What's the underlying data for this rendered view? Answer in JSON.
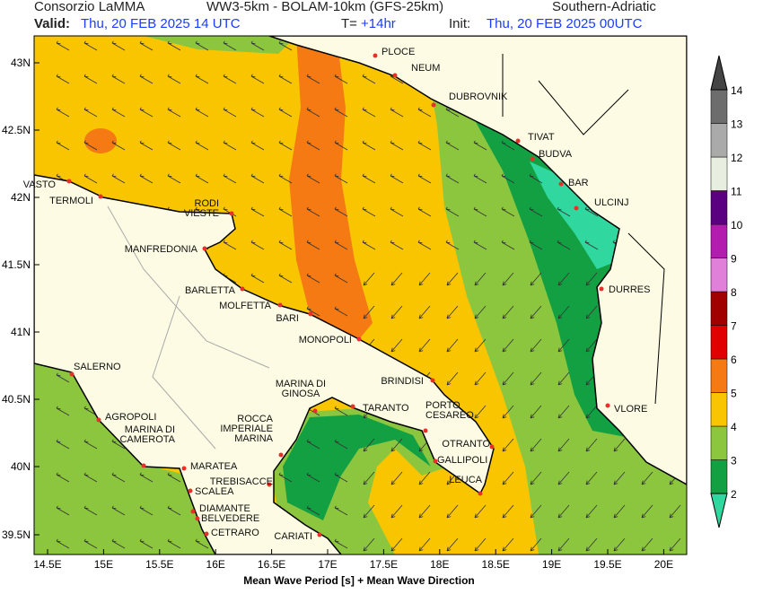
{
  "header": {
    "producer": "Consorzio LaMMA",
    "model": "WW3-5km - BOLAM-10km (GFS-25km)",
    "region": "Southern-Adriatic",
    "valid_label": "Valid:",
    "valid": "Thu, 20 FEB 2025  14 UTC",
    "step_label": "T=",
    "step": "+14hr",
    "init_label": "Init:",
    "init": "Thu, 20 FEB 2025 00UTC"
  },
  "footer": "Mean Wave Period [s] + Mean Wave Direction",
  "lat_labels": [
    "43N",
    "42.5N",
    "42N",
    "41.5N",
    "41N",
    "40.5N",
    "40N",
    "39.5N"
  ],
  "lon_labels": [
    "14.5E",
    "15E",
    "15.5E",
    "16E",
    "16.5E",
    "17E",
    "17.5E",
    "18E",
    "18.5E",
    "19E",
    "19.5E",
    "20E"
  ],
  "cities": [
    [
      "VASTO"
    ],
    [
      "TERMOLI"
    ],
    [
      "RODI",
      "VIESTE"
    ],
    [
      "MANFREDONIA"
    ],
    [
      "BARLETTA"
    ],
    [
      "MOLFETTA"
    ],
    [
      "BARI"
    ],
    [
      "MONOPOLI"
    ],
    [
      "BRINDISI"
    ],
    [
      "SALERNO"
    ],
    [
      "AGROPOLI"
    ],
    [
      "MARINA DI",
      "CAMEROTA"
    ],
    [
      "MARATEA"
    ],
    [
      "SCALEA"
    ],
    [
      "DIAMANTE"
    ],
    [
      "BELVEDERE"
    ],
    [
      "CETRARO"
    ],
    [
      "ROCCA",
      "IMPERIALE",
      "MARINA"
    ],
    [
      "TREBISACCE"
    ],
    [
      "MARINA DI",
      "GINOSA"
    ],
    [
      "TARANTO"
    ],
    [
      "PORTO",
      "CESAREO"
    ],
    [
      "OTRANTO"
    ],
    [
      "GALLIPOLI"
    ],
    [
      "LEUCA"
    ],
    [
      "CARIATI"
    ],
    [
      "PLOCE"
    ],
    [
      "NEUM"
    ],
    [
      "DUBROVNIK"
    ],
    [
      "TIVAT"
    ],
    [
      "BUDVA"
    ],
    [
      "BAR"
    ],
    [
      "ULCINJ"
    ],
    [
      "DURRES"
    ],
    [
      "VLORE"
    ]
  ],
  "colorbar": {
    "ticks": [
      2,
      3,
      4,
      5,
      6,
      7,
      8,
      9,
      10,
      11,
      12,
      13,
      14
    ],
    "colors": [
      "#13a043",
      "#8cc63f",
      "#f8c500",
      "#f57a14",
      "#e00000",
      "#a00000",
      "#e080d8",
      "#b21caf",
      "#5a0080",
      "#e8efe0",
      "#aaaaaa",
      "#6d6d6d"
    ],
    "under_color": "#30d8a0",
    "over_color": "#444444"
  }
}
